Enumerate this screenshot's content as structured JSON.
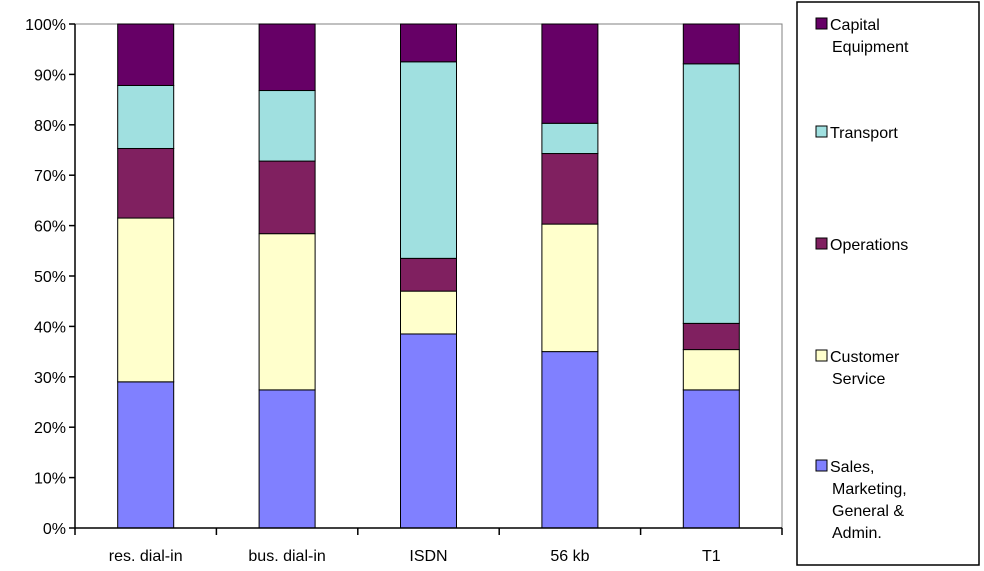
{
  "chart_data": {
    "type": "bar",
    "stacked": true,
    "normalized": true,
    "categories": [
      "res. dial-in",
      "bus. dial-in",
      "ISDN",
      "56 kb",
      "T1"
    ],
    "series": [
      {
        "name": "Sales, Marketing, General & Admin.",
        "legend_lines": [
          "Sales,",
          "Marketing,",
          "General &",
          "Admin."
        ],
        "color": "#8080ff",
        "values": [
          29,
          27.4,
          38.5,
          35,
          27.4
        ]
      },
      {
        "name": "Customer Service",
        "legend_lines": [
          "Customer",
          "Service"
        ],
        "color": "#ffffcc",
        "values": [
          32.5,
          31,
          8.5,
          25.3,
          8
        ]
      },
      {
        "name": "Operations",
        "legend_lines": [
          "Operations"
        ],
        "color": "#802060",
        "values": [
          13.8,
          14.4,
          6.5,
          14,
          5.2
        ]
      },
      {
        "name": "Transport",
        "legend_lines": [
          "Transport"
        ],
        "color": "#a0e0e0",
        "values": [
          12.5,
          14,
          39,
          6,
          51.5
        ]
      },
      {
        "name": "Capital Equipment",
        "legend_lines": [
          "Capital",
          "Equipment"
        ],
        "color": "#660066",
        "values": [
          12.2,
          13.2,
          7.5,
          19.7,
          7.9
        ]
      }
    ],
    "yticks": [
      "0%",
      "10%",
      "20%",
      "30%",
      "40%",
      "50%",
      "60%",
      "70%",
      "80%",
      "90%",
      "100%"
    ],
    "ylim": [
      0,
      100
    ],
    "grid": false,
    "legend": "right",
    "plot_background": "#ffffff",
    "plot_border_color": "#808080"
  }
}
